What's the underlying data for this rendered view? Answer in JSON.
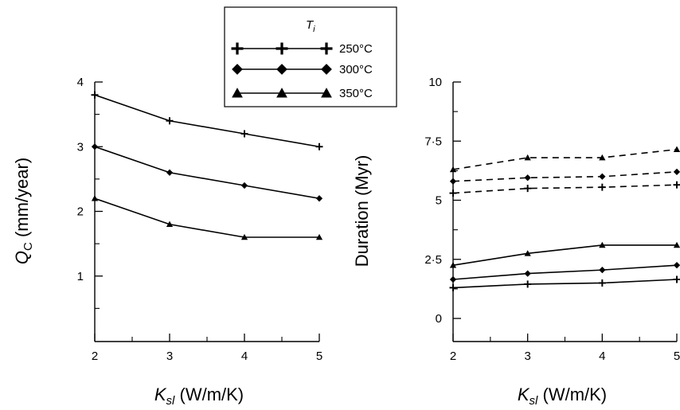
{
  "legend": {
    "title_symbol": "T",
    "title_subscript": "i",
    "entries": [
      {
        "label": "250°C",
        "marker": "plus"
      },
      {
        "label": "300°C",
        "marker": "diamond"
      },
      {
        "label": "350°C",
        "marker": "triangle"
      }
    ]
  },
  "chart_data": [
    {
      "type": "line",
      "xlabel_symbol": "K",
      "xlabel_subscript": "sl",
      "xlabel_units": " (W/m/K)",
      "ylabel_symbol": "Q",
      "ylabel_subscript": "C",
      "ylabel_units": " (mm/year)",
      "x": [
        2,
        3,
        4,
        5
      ],
      "x_ticks": [
        "2",
        "3",
        "4",
        "5"
      ],
      "y_ticks": [
        "1",
        "2",
        "3",
        "4"
      ],
      "y_tick_values": [
        1,
        2,
        3,
        4
      ],
      "ylim": [
        0,
        4
      ],
      "xlim": [
        2,
        5
      ],
      "series": [
        {
          "name": "250°C",
          "marker": "plus",
          "values": [
            3.8,
            3.4,
            3.2,
            3.0
          ]
        },
        {
          "name": "300°C",
          "marker": "diamond",
          "values": [
            3.0,
            2.6,
            2.4,
            2.2
          ]
        },
        {
          "name": "350°C",
          "marker": "triangle",
          "values": [
            2.2,
            1.8,
            1.6,
            1.6
          ]
        }
      ]
    },
    {
      "type": "line",
      "xlabel_symbol": "K",
      "xlabel_subscript": "sl",
      "xlabel_units": " (W/m/K)",
      "ylabel": "Duration (Myr)",
      "x": [
        2,
        3,
        4,
        5
      ],
      "x_ticks": [
        "2",
        "3",
        "4",
        "5"
      ],
      "y_ticks": [
        "0",
        "2·5",
        "5",
        "7·5",
        "10"
      ],
      "y_tick_values": [
        0,
        2.5,
        5,
        7.5,
        10
      ],
      "ylim": [
        0,
        10
      ],
      "xlim": [
        2,
        5
      ],
      "series": [
        {
          "name": "250°C",
          "marker": "plus",
          "style": "solid",
          "values": [
            1.3,
            1.45,
            1.5,
            1.65
          ]
        },
        {
          "name": "300°C",
          "marker": "diamond",
          "style": "solid",
          "values": [
            1.65,
            1.9,
            2.05,
            2.25
          ]
        },
        {
          "name": "350°C",
          "marker": "triangle",
          "style": "solid",
          "values": [
            2.25,
            2.75,
            3.1,
            3.1
          ]
        },
        {
          "name": "250°C",
          "marker": "plus",
          "style": "dashed",
          "values": [
            5.3,
            5.5,
            5.55,
            5.65
          ]
        },
        {
          "name": "300°C",
          "marker": "diamond",
          "style": "dashed",
          "values": [
            5.8,
            5.95,
            6.0,
            6.2
          ]
        },
        {
          "name": "350°C",
          "marker": "triangle",
          "style": "dashed",
          "values": [
            6.3,
            6.8,
            6.8,
            7.15
          ]
        }
      ]
    }
  ]
}
